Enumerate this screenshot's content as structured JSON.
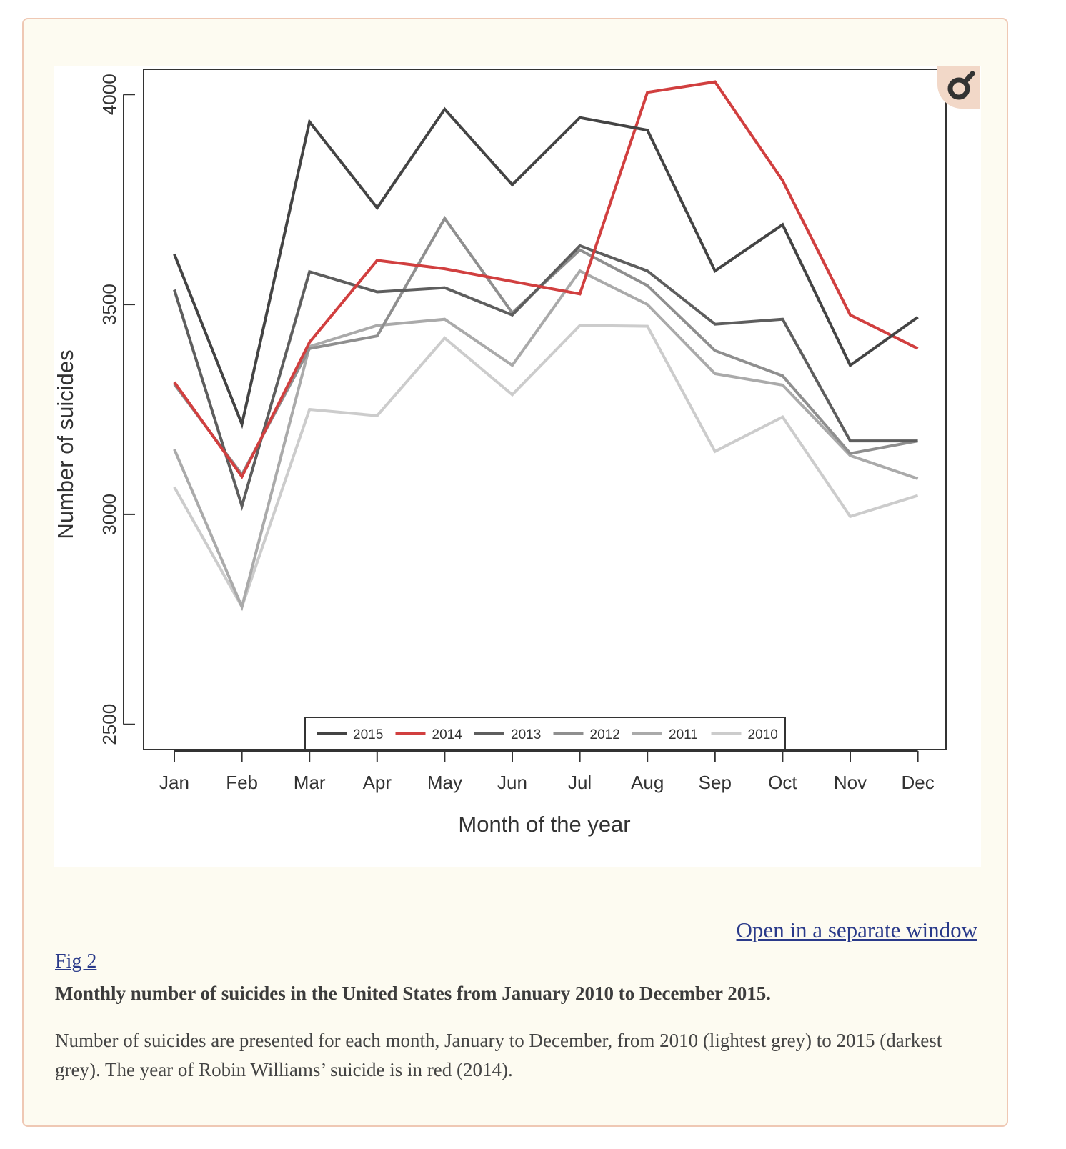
{
  "figure": {
    "open_link": "Open in a separate window",
    "label": "Fig 2",
    "title": "Monthly number of suicides in the United States from January 2010 to December 2015.",
    "description": "Number of suicides are presented for each month, January to December, from 2010 (lightest grey) to 2015 (darkest grey). The year of Robin Williams’ suicide is in red (2014).",
    "magnify_icon": "magnifier-icon"
  },
  "chart_data": {
    "type": "line",
    "title": "",
    "xlabel": "Month of the year",
    "ylabel": "Number of suicides",
    "ylim": [
      2440,
      4060
    ],
    "yticks": [
      2500,
      3000,
      3500,
      4000
    ],
    "grid": false,
    "legend_position": "bottom-center",
    "categories": [
      "Jan",
      "Feb",
      "Mar",
      "Apr",
      "May",
      "Jun",
      "Jul",
      "Aug",
      "Sep",
      "Oct",
      "Nov",
      "Dec"
    ],
    "series": [
      {
        "name": "2010",
        "color": "#cccccc",
        "values": [
          3065,
          2780,
          3250,
          3235,
          3420,
          3285,
          3450,
          3448,
          3150,
          3232,
          2995,
          3045
        ]
      },
      {
        "name": "2011",
        "color": "#aaaaaa",
        "values": [
          3155,
          2780,
          3400,
          3450,
          3465,
          3355,
          3580,
          3500,
          3335,
          3308,
          3140,
          3085
        ]
      },
      {
        "name": "2012",
        "color": "#8f8f8f",
        "values": [
          3310,
          3095,
          3395,
          3425,
          3705,
          3480,
          3630,
          3545,
          3390,
          3330,
          3145,
          3175
        ]
      },
      {
        "name": "2013",
        "color": "#5e5e5e",
        "values": [
          3535,
          3020,
          3578,
          3530,
          3540,
          3475,
          3640,
          3580,
          3453,
          3465,
          3175,
          3175
        ]
      },
      {
        "name": "2014",
        "color": "#d13f3f",
        "values": [
          3315,
          3090,
          3410,
          3605,
          3585,
          3555,
          3525,
          4005,
          4030,
          3795,
          3475,
          3395
        ]
      },
      {
        "name": "2015",
        "color": "#444444",
        "values": [
          3620,
          3215,
          3935,
          3730,
          3965,
          3785,
          3945,
          3915,
          3580,
          3690,
          3355,
          3470
        ]
      }
    ]
  }
}
